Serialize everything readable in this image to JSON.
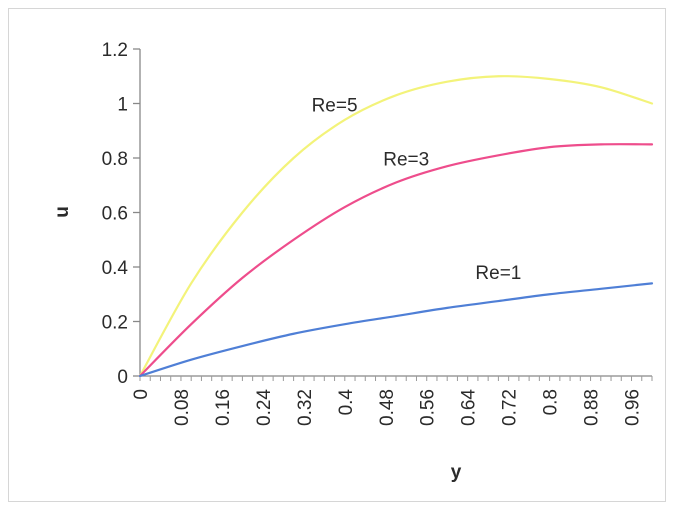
{
  "chart_data": {
    "type": "line",
    "xlabel": "y",
    "ylabel": "u",
    "xlim": [
      0,
      1.0
    ],
    "ylim": [
      0,
      1.2
    ],
    "x_ticks": [
      "0",
      "0.08",
      "0.16",
      "0.24",
      "0.32",
      "0.4",
      "0.48",
      "0.56",
      "0.64",
      "0.72",
      "0.8",
      "0.88",
      "0.96"
    ],
    "y_ticks": [
      "0",
      "0.2",
      "0.4",
      "0.6",
      "0.8",
      "1",
      "1.2"
    ],
    "grid": false,
    "legend": "none",
    "x": [
      0,
      0.1,
      0.2,
      0.3,
      0.4,
      0.5,
      0.6,
      0.7,
      0.8,
      0.9,
      1.0
    ],
    "series": [
      {
        "name": "Re=5",
        "color": "#f3f37a",
        "values": [
          0,
          0.34,
          0.6,
          0.8,
          0.94,
          1.03,
          1.08,
          1.1,
          1.09,
          1.06,
          1.0
        ]
      },
      {
        "name": "Re=3",
        "color": "#ee4d8c",
        "values": [
          0,
          0.19,
          0.36,
          0.5,
          0.62,
          0.71,
          0.77,
          0.81,
          0.84,
          0.85,
          0.85
        ]
      },
      {
        "name": "Re=1",
        "color": "#4f7fd6",
        "values": [
          0,
          0.06,
          0.11,
          0.155,
          0.19,
          0.22,
          0.25,
          0.275,
          0.3,
          0.32,
          0.34
        ]
      }
    ]
  }
}
